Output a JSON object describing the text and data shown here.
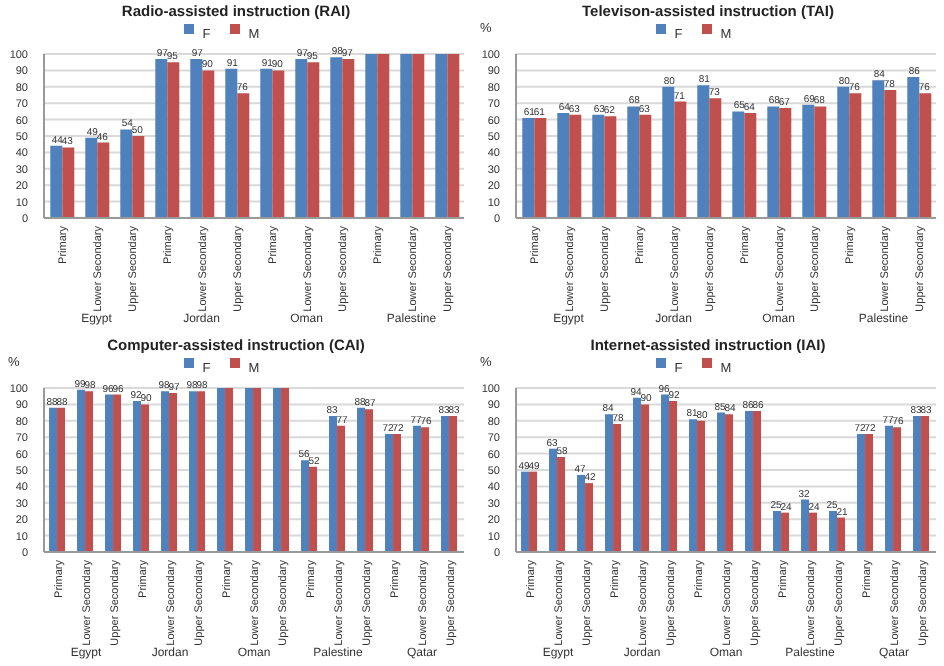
{
  "chart_data": [
    {
      "type": "bar",
      "title": "Radio-assisted instruction (RAI)",
      "categories": [
        "Primary",
        "Lower Secondary",
        "Upper Secondary",
        "Primary",
        "Lower Secondary",
        "Upper Secondary",
        "Primary",
        "Lower Secondary",
        "Upper Secondary",
        "Primary",
        "Lower Secondary",
        "Upper Secondary"
      ],
      "annotations": [
        "Egypt",
        "Jordan",
        "Oman",
        "Palestine"
      ],
      "series": [
        {
          "name": "F",
          "color": "#4f81bd",
          "values": [
            44,
            49,
            54,
            97,
            97,
            91,
            91,
            97,
            98,
            100,
            100,
            100
          ],
          "value_labels": [
            "44",
            "49",
            "54",
            "97",
            "97",
            "91",
            "91",
            "97",
            "98",
            null,
            null,
            null
          ]
        },
        {
          "name": "M",
          "color": "#c0504d",
          "values": [
            43,
            46,
            50,
            95,
            90,
            76,
            90,
            95,
            97,
            100,
            100,
            100
          ],
          "value_labels": [
            "43",
            "46",
            "50",
            "95",
            "90",
            "76",
            "90",
            "95",
            "97",
            null,
            null,
            null
          ]
        }
      ],
      "ylim": [
        0,
        100
      ],
      "yticks": [
        0,
        10,
        20,
        30,
        40,
        50,
        60,
        70,
        80,
        90,
        100
      ],
      "grid": "y",
      "legend": "top"
    },
    {
      "type": "bar",
      "title": "Televison-assisted instruction (TAI)",
      "ylabel": "%",
      "categories": [
        "Primary",
        "Lower Secondary",
        "Upper Secondary",
        "Primary",
        "Lower Secondary",
        "Upper Secondary",
        "Primary",
        "Lower Secondary",
        "Upper Secondary",
        "Primary",
        "Lower Secondary",
        "Upper Secondary"
      ],
      "annotations": [
        "Egypt",
        "Jordan",
        "Oman",
        "Palestine"
      ],
      "series": [
        {
          "name": "F",
          "color": "#4f81bd",
          "values": [
            61,
            64,
            63,
            68,
            80,
            81,
            65,
            68,
            69,
            80,
            84,
            86
          ]
        },
        {
          "name": "M",
          "color": "#c0504d",
          "values": [
            61,
            63,
            62,
            63,
            71,
            73,
            64,
            67,
            68,
            76,
            78,
            76
          ]
        }
      ],
      "ylim": [
        0,
        100
      ],
      "yticks": [
        0,
        10,
        20,
        30,
        40,
        50,
        60,
        70,
        80,
        90,
        100
      ],
      "grid": "y",
      "legend": "top",
      "data_labels": true
    },
    {
      "type": "bar",
      "title": "Computer-assisted instruction (CAI)",
      "ylabel": "%",
      "categories": [
        "Primary",
        "Lower Secondary",
        "Upper Secondary",
        "Primary",
        "Lower Secondary",
        "Upper Secondary",
        "Primary",
        "Lower Secondary",
        "Upper Secondary",
        "Primary",
        "Lower Secondary",
        "Upper Secondary",
        "Primary",
        "Lower Secondary",
        "Upper Secondary"
      ],
      "annotations": [
        "Egypt",
        "Jordan",
        "Oman",
        "Palestine",
        "Qatar"
      ],
      "series": [
        {
          "name": "F",
          "color": "#4f81bd",
          "values": [
            88,
            99,
            96,
            92,
            98,
            98,
            100,
            100,
            100,
            56,
            83,
            88,
            72,
            77,
            83
          ],
          "value_labels": [
            "88",
            "99",
            "96",
            "92",
            "98",
            "98",
            null,
            null,
            null,
            "56",
            "83",
            "88",
            "72",
            "77",
            "83"
          ]
        },
        {
          "name": "M",
          "color": "#c0504d",
          "values": [
            88,
            98,
            96,
            90,
            97,
            98,
            100,
            100,
            100,
            52,
            77,
            87,
            72,
            76,
            83
          ],
          "value_labels": [
            "88",
            "98",
            "96",
            "90",
            "97",
            "98",
            null,
            null,
            null,
            "52",
            "77",
            "87",
            "72",
            "76",
            "83"
          ]
        }
      ],
      "ylim": [
        0,
        100
      ],
      "yticks": [
        0,
        10,
        20,
        30,
        40,
        50,
        60,
        70,
        80,
        90,
        100
      ],
      "grid": "y",
      "legend": "top"
    },
    {
      "type": "bar",
      "title": "Internet-assisted instruction (IAI)",
      "ylabel": "%",
      "categories": [
        "Primary",
        "Lower Secondary",
        "Upper Secondary",
        "Primary",
        "Lower Secondary",
        "Upper Secondary",
        "Primary",
        "Lower Secondary",
        "Upper Secondary",
        "Primary",
        "Lower Secondary",
        "Upper Secondary",
        "Primary",
        "Lower Secondary",
        "Upper Secondary"
      ],
      "annotations": [
        "Egypt",
        "Jordan",
        "Oman",
        "Palestine",
        "Qatar"
      ],
      "series": [
        {
          "name": "F",
          "color": "#4f81bd",
          "values": [
            49,
            63,
            47,
            84,
            94,
            96,
            81,
            85,
            86,
            25,
            32,
            25,
            72,
            77,
            83
          ]
        },
        {
          "name": "M",
          "color": "#c0504d",
          "values": [
            49,
            58,
            42,
            78,
            90,
            92,
            80,
            84,
            86,
            24,
            24,
            21,
            72,
            76,
            83
          ]
        }
      ],
      "ylim": [
        0,
        100
      ],
      "yticks": [
        0,
        10,
        20,
        30,
        40,
        50,
        60,
        70,
        80,
        90,
        100
      ],
      "grid": "y",
      "legend": "top",
      "data_labels": true
    }
  ]
}
